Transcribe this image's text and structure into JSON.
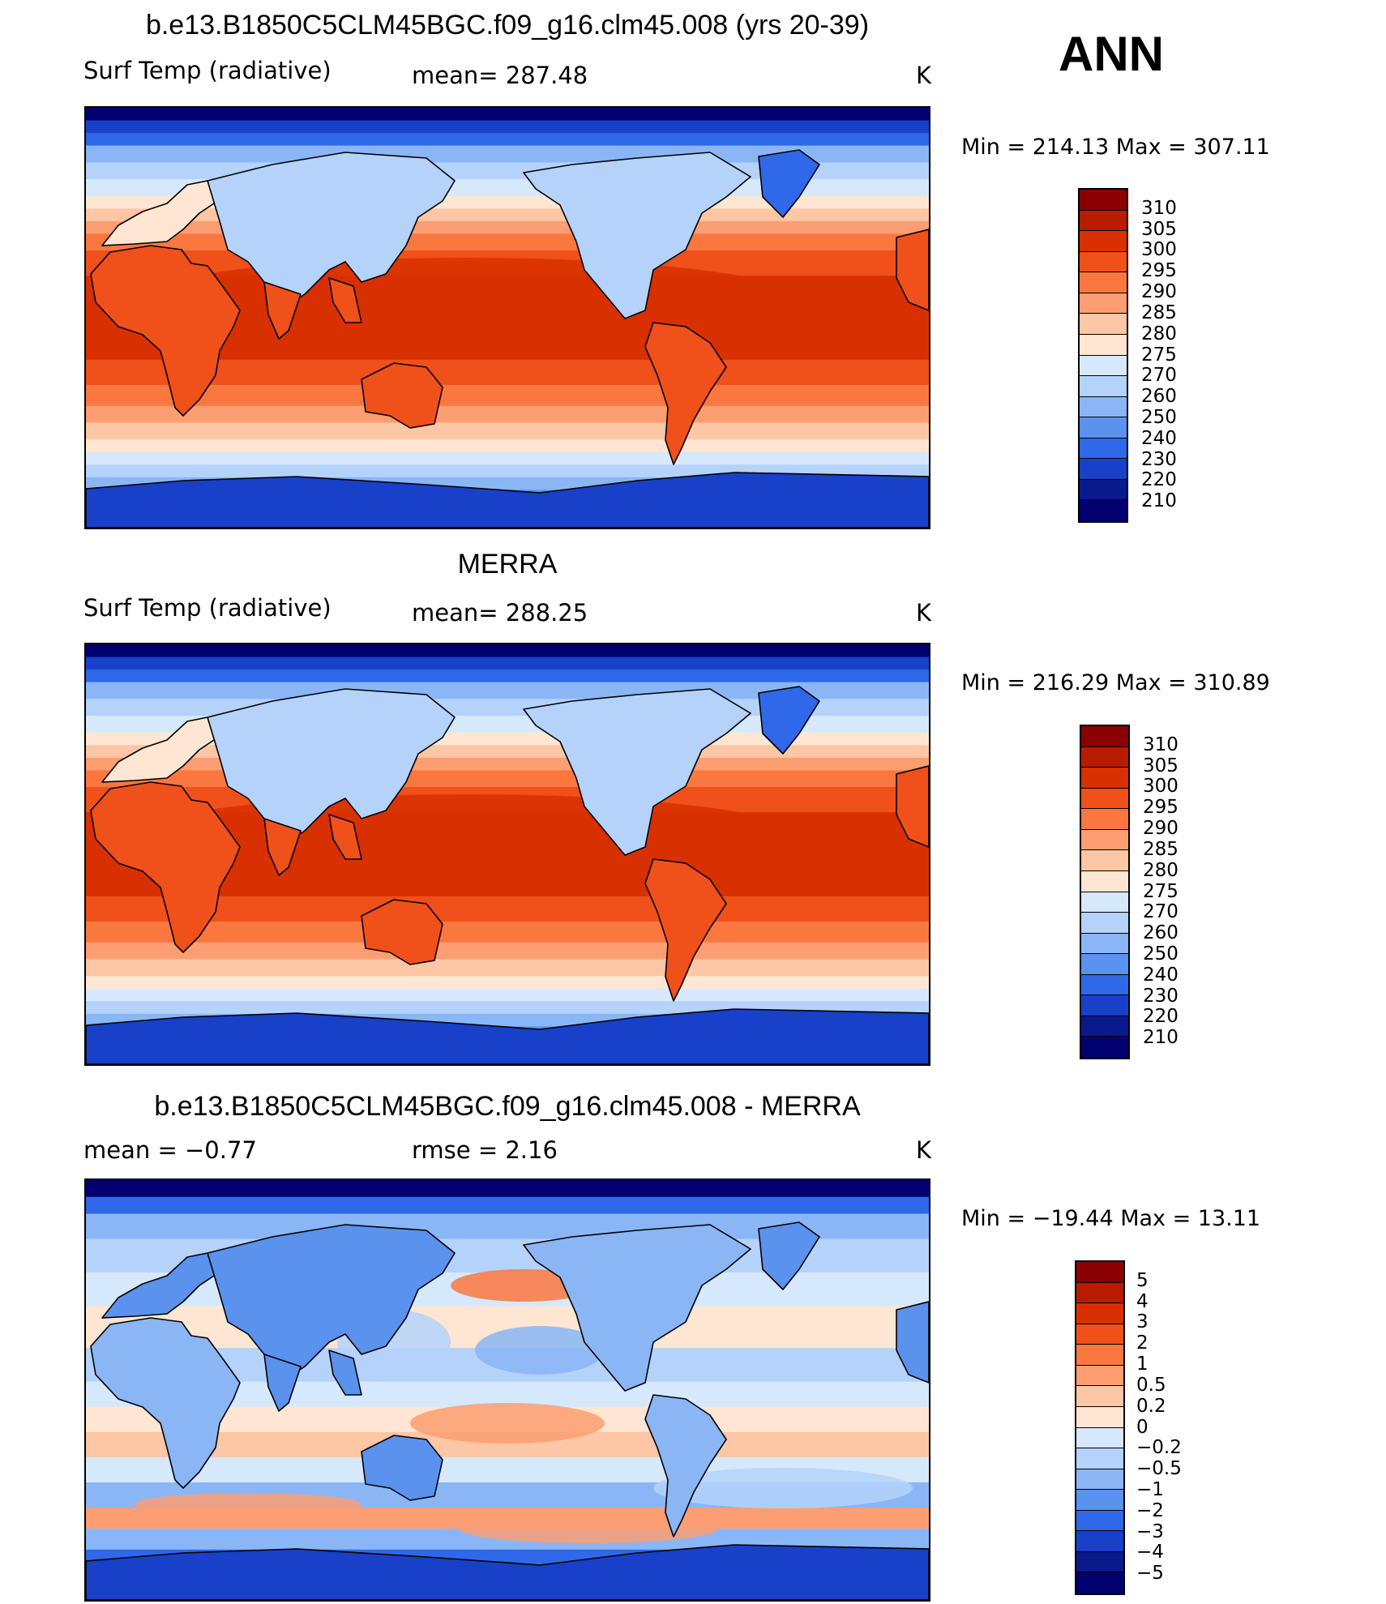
{
  "season": "ANN",
  "panels": [
    {
      "title": "b.e13.B1850C5CLM45BGC.f09_g16.clm45.008 (yrs 20-39)",
      "variable": "Surf Temp (radiative)",
      "stat": "mean=  287.48",
      "units": "K",
      "minmax": "Min  =  214.13  Max  =  307.11",
      "field": "model",
      "colorbar": {
        "labels": [
          "310",
          "305",
          "300",
          "295",
          "290",
          "285",
          "280",
          "275",
          "270",
          "260",
          "250",
          "240",
          "230",
          "220",
          "210"
        ],
        "colors": [
          "#8b0000",
          "#b81c00",
          "#d83000",
          "#f0501a",
          "#fa7840",
          "#fc9e72",
          "#fdc6a4",
          "#fee6d2",
          "#d6e8fb",
          "#b4d2fa",
          "#8ab6f6",
          "#5a92ee",
          "#2f68e8",
          "#1840c8",
          "#0a1a8c",
          "#000070"
        ]
      }
    },
    {
      "title": "MERRA",
      "variable": "Surf Temp (radiative)",
      "stat": "mean=  288.25",
      "units": "K",
      "minmax": "Min  =  216.29  Max  =  310.89",
      "field": "obs",
      "colorbar": {
        "labels": [
          "310",
          "305",
          "300",
          "295",
          "290",
          "285",
          "280",
          "275",
          "270",
          "260",
          "250",
          "240",
          "230",
          "220",
          "210"
        ],
        "colors": [
          "#8b0000",
          "#b81c00",
          "#d83000",
          "#f0501a",
          "#fa7840",
          "#fc9e72",
          "#fdc6a4",
          "#fee6d2",
          "#d6e8fb",
          "#b4d2fa",
          "#8ab6f6",
          "#5a92ee",
          "#2f68e8",
          "#1840c8",
          "#0a1a8c",
          "#000070"
        ]
      }
    },
    {
      "title": "b.e13.B1850C5CLM45BGC.f09_g16.clm45.008 - MERRA",
      "variable": "mean  =    −0.77",
      "stat": "rmse  =     2.16",
      "units": "K",
      "minmax": "Min  =  −19.44  Max  =    13.11",
      "field": "diff",
      "colorbar": {
        "labels": [
          "5",
          "4",
          "3",
          "2",
          "1",
          "0.5",
          "0.2",
          "0",
          "−0.2",
          "−0.5",
          "−1",
          "−2",
          "−3",
          "−4",
          "−5"
        ],
        "colors": [
          "#8b0000",
          "#b81c00",
          "#d83000",
          "#f0501a",
          "#fa7840",
          "#fc9e72",
          "#fdc6a4",
          "#fee6d2",
          "#d6e8fb",
          "#b4d2fa",
          "#8ab6f6",
          "#5a92ee",
          "#2f68e8",
          "#1840c8",
          "#0a1a8c",
          "#000070"
        ]
      }
    }
  ]
}
